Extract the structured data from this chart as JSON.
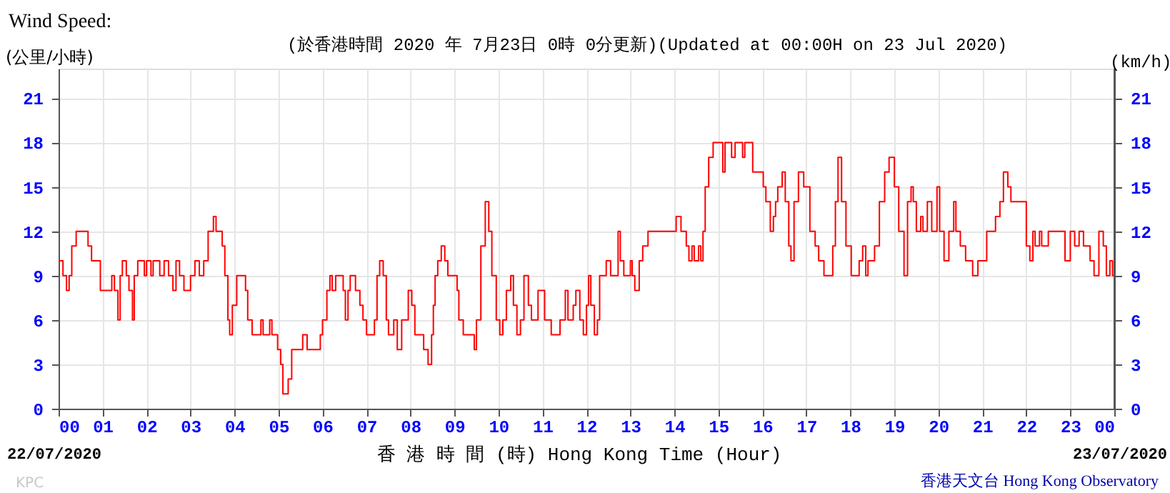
{
  "chart_data": {
    "type": "step",
    "title": "Wind Speed:",
    "subtitle": "(於香港時間 2020 年 7月23日 0時 0分更新)(Updated at 00:00H on 23 Jul 2020)",
    "ylabel": "(公里/小時)",
    "y2label": "(km/h)",
    "xlabel": "香 港 時 間 (時) Hong Kong Time (Hour)",
    "annotations": [
      "22/07/2020",
      "23/07/2020",
      "KPC",
      "香港天文台 Hong Kong Observatory"
    ],
    "series": [
      {
        "color": "#ff0000",
        "x": [
          0,
          0.1,
          0.18,
          0.24,
          0.3,
          0.4,
          0.67,
          0.75,
          0.95,
          1.21,
          1.27,
          1.35,
          1.4,
          1.45,
          1.54,
          1.6,
          1.68,
          1.72,
          1.8,
          1.95,
          2.0,
          2.1,
          2.15,
          2.3,
          2.4,
          2.5,
          2.6,
          2.67,
          2.75,
          2.85,
          2.94,
          3.0,
          3.1,
          3.2,
          3.3,
          3.4,
          3.52,
          3.58,
          3.72,
          3.78,
          3.85,
          3.89,
          3.95,
          4.05,
          4.25,
          4.3,
          4.4,
          4.6,
          4.65,
          4.8,
          4.85,
          4.98,
          5.05,
          5.1,
          5.22,
          5.3,
          5.55,
          5.65,
          5.95,
          6.0,
          6.1,
          6.17,
          6.22,
          6.3,
          6.47,
          6.52,
          6.58,
          6.63,
          6.75,
          6.85,
          6.92,
          7.0,
          7.18,
          7.24,
          7.3,
          7.38,
          7.45,
          7.5,
          7.62,
          7.7,
          7.8,
          7.95,
          8.03,
          8.1,
          8.3,
          8.4,
          8.48,
          8.52,
          8.56,
          8.62,
          8.7,
          8.78,
          8.85,
          9.06,
          9.1,
          9.2,
          9.45,
          9.5,
          9.6,
          9.7,
          9.78,
          9.85,
          9.95,
          10.03,
          10.1,
          10.18,
          10.28,
          10.34,
          10.42,
          10.5,
          10.58,
          10.68,
          10.75,
          10.9,
          11.05,
          11.2,
          11.4,
          11.52,
          11.58,
          11.7,
          11.76,
          11.85,
          11.93,
          12.0,
          12.05,
          12.1,
          12.18,
          12.25,
          12.3,
          12.45,
          12.55,
          12.72,
          12.77,
          12.85,
          13.0,
          13.04,
          13.1,
          13.2,
          13.28,
          13.4,
          14.04,
          14.15,
          14.27,
          14.33,
          14.4,
          14.45,
          14.55,
          14.6,
          14.65,
          14.7,
          14.78,
          14.88,
          15.1,
          15.15,
          15.3,
          15.38,
          15.55,
          15.6,
          15.78,
          16.02,
          16.08,
          16.18,
          16.25,
          16.3,
          16.35,
          16.45,
          16.52,
          16.6,
          16.65,
          16.72,
          16.82,
          16.94,
          17.08,
          17.2,
          17.28,
          17.4,
          17.6,
          17.66,
          17.72,
          17.8,
          17.9,
          18.02,
          18.2,
          18.28,
          18.35,
          18.4,
          18.55,
          18.66,
          18.78,
          18.88,
          19.0,
          19.1,
          19.22,
          19.3,
          19.38,
          19.43,
          19.5,
          19.6,
          19.65,
          19.75,
          19.85,
          19.97,
          20.03,
          20.13,
          20.24,
          20.35,
          20.4,
          20.5,
          20.62,
          20.78,
          20.9,
          21.1,
          21.3,
          21.4,
          21.48,
          21.58,
          21.65,
          22.0,
          22.08,
          22.15,
          22.2,
          22.3,
          22.35,
          22.5,
          22.88,
          23.0,
          23.1,
          23.2,
          23.3,
          23.45,
          23.54,
          23.65,
          23.75,
          23.82,
          23.9,
          23.96,
          24
        ],
        "values": [
          10,
          9,
          8,
          9,
          11,
          12,
          11,
          10,
          8,
          9,
          8,
          6,
          9,
          10,
          9,
          8,
          6,
          9,
          10,
          9,
          10,
          9,
          10,
          9,
          10,
          9,
          8,
          10,
          9,
          8,
          8,
          9,
          10,
          9,
          10,
          12,
          13,
          12,
          11,
          9,
          6,
          5,
          7,
          9,
          8,
          6,
          5,
          6,
          5,
          6,
          5,
          4,
          3,
          1,
          2,
          4,
          5,
          4,
          5,
          6,
          8,
          9,
          8,
          9,
          8,
          6,
          8,
          9,
          8,
          7,
          6,
          5,
          6,
          9,
          10,
          9,
          6,
          5,
          6,
          4,
          6,
          8,
          7,
          5,
          4,
          3,
          5,
          7,
          9,
          10,
          11,
          10,
          9,
          8,
          6,
          5,
          4,
          6,
          11,
          14,
          12,
          9,
          6,
          5,
          6,
          8,
          9,
          7,
          5,
          6,
          9,
          7,
          6,
          8,
          6,
          5,
          6,
          8,
          6,
          7,
          8,
          6,
          5,
          7,
          9,
          7,
          5,
          6,
          9,
          10,
          9,
          12,
          10,
          9,
          10,
          9,
          8,
          10,
          11,
          12,
          13,
          12,
          11,
          10,
          11,
          10,
          11,
          10,
          12,
          15,
          17,
          18,
          16,
          18,
          17,
          18,
          17,
          18,
          16,
          15,
          14,
          12,
          13,
          14,
          15,
          16,
          14,
          11,
          10,
          14,
          16,
          15,
          12,
          11,
          10,
          9,
          11,
          14,
          17,
          14,
          11,
          9,
          10,
          11,
          9,
          10,
          11,
          14,
          16,
          17,
          15,
          12,
          9,
          14,
          15,
          14,
          12,
          13,
          12,
          14,
          12,
          15,
          12,
          10,
          12,
          14,
          12,
          11,
          10,
          9,
          10,
          12,
          13,
          14,
          16,
          15,
          14,
          11,
          10,
          12,
          11,
          12,
          11,
          12,
          10,
          12,
          11,
          12,
          11,
          10,
          9,
          12,
          11,
          9,
          10,
          9,
          9
        ]
      }
    ],
    "xlim": [
      0,
      24
    ],
    "xticks": [
      {
        "value": 0,
        "label": "00"
      },
      {
        "value": 1,
        "label": "01"
      },
      {
        "value": 2,
        "label": "02"
      },
      {
        "value": 3,
        "label": "03"
      },
      {
        "value": 4,
        "label": "04"
      },
      {
        "value": 5,
        "label": "05"
      },
      {
        "value": 6,
        "label": "06"
      },
      {
        "value": 7,
        "label": "07"
      },
      {
        "value": 8,
        "label": "08"
      },
      {
        "value": 9,
        "label": "09"
      },
      10,
      11,
      12,
      13,
      14,
      15,
      16,
      17,
      18,
      19,
      20,
      21,
      22,
      23,
      {
        "value": 24,
        "label": "00"
      }
    ],
    "ylim": [
      0,
      23
    ],
    "yticks": [
      0,
      3,
      6,
      9,
      12,
      15,
      18,
      21
    ],
    "y2lim": [
      0,
      23
    ],
    "y2ticks": [
      0,
      3,
      6,
      9,
      12,
      15,
      18,
      21
    ],
    "grid": true
  }
}
